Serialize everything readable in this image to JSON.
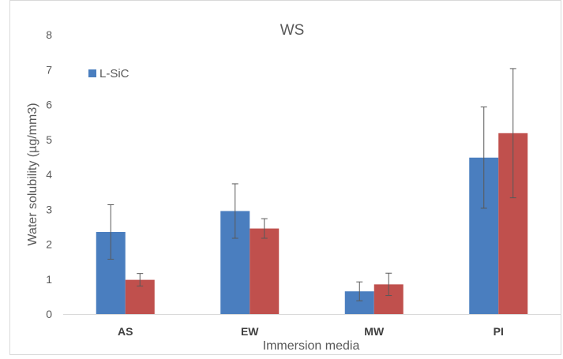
{
  "chart_data": {
    "type": "bar",
    "title": "WS",
    "xlabel": "Immersion media",
    "ylabel": "Water solubility (µg/mm3)",
    "categories": [
      "AS",
      "EW",
      "MW",
      "PI"
    ],
    "ylim": [
      0,
      8
    ],
    "yticks": [
      0,
      1,
      2,
      3,
      4,
      5,
      6,
      7,
      8
    ],
    "grid": false,
    "legend_position": "top-left",
    "series": [
      {
        "name": "L-SiC",
        "color": "#4a7ebf",
        "values": [
          2.35,
          2.95,
          0.65,
          4.48
        ],
        "error": [
          0.78,
          0.78,
          0.27,
          1.45
        ]
      },
      {
        "color": "#c0504d",
        "values": [
          0.98,
          2.45,
          0.85,
          5.18
        ],
        "error": [
          0.18,
          0.28,
          0.32,
          1.85
        ]
      }
    ]
  }
}
